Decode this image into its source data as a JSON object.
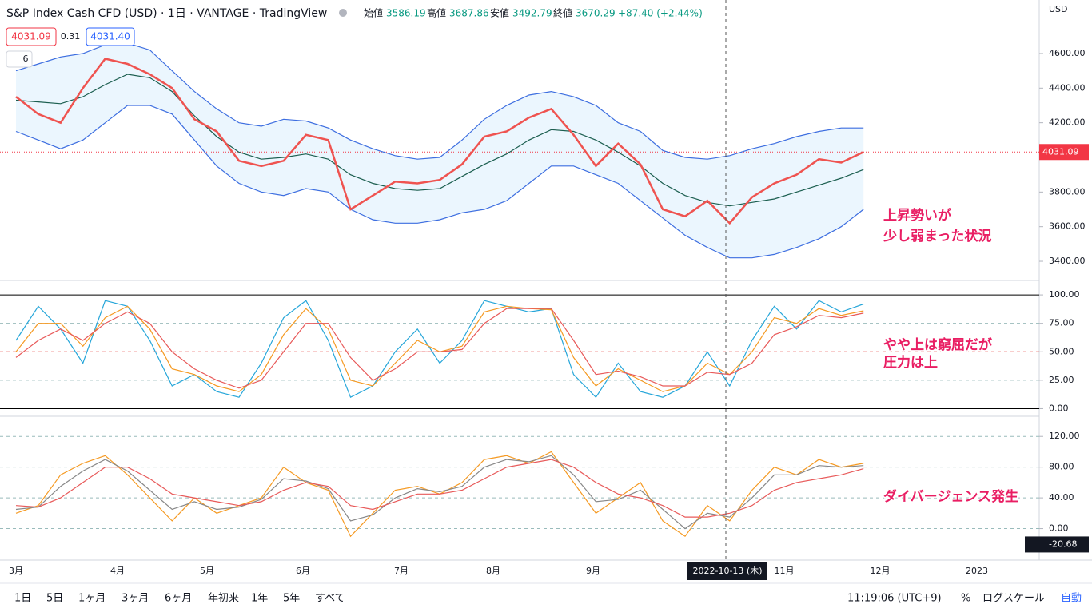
{
  "header": {
    "title": "S&P Index Cash CFD (USD) · 1日 · VANTAGE · TradingView",
    "open_label": "始値",
    "open": 3586.19,
    "high_label": "高値",
    "high": 3687.86,
    "low_label": "安値",
    "low": 3492.79,
    "close_label": "終値",
    "close": 3670.29,
    "change": "+87.40 (+2.44%)",
    "sell": "4031.09",
    "spread": "0.31",
    "buy": "4031.40",
    "indicator_count": "6",
    "currency": "USD"
  },
  "chart_data": [
    {
      "type": "line",
      "ylim": [
        3294,
        4909
      ],
      "yticks": [
        {
          "value": 4600,
          "label": "4600.00"
        },
        {
          "value": 4400,
          "label": "4400.00"
        },
        {
          "value": 4200,
          "label": "4200.00"
        },
        {
          "value": 3800,
          "label": "3800.00"
        },
        {
          "value": 3600,
          "label": "3600.00"
        },
        {
          "value": 3400,
          "label": "3400.00"
        }
      ],
      "last_price": {
        "value": 4031.09,
        "label": "4031.09"
      },
      "series": [
        {
          "name": "Upper",
          "color": "#3d6ee0",
          "values": [
            4500,
            4540,
            4580,
            4600,
            4650,
            4660,
            4620,
            4500,
            4380,
            4280,
            4200,
            4180,
            4220,
            4210,
            4170,
            4100,
            4050,
            4010,
            3990,
            4000,
            4100,
            4220,
            4300,
            4360,
            4380,
            4350,
            4300,
            4200,
            4150,
            4040,
            4000,
            3990,
            4010,
            4050,
            4080,
            4120,
            4150,
            4170,
            4170
          ]
        },
        {
          "name": "Lower",
          "color": "#3d6ee0",
          "values": [
            4150,
            4100,
            4050,
            4100,
            4200,
            4300,
            4300,
            4250,
            4100,
            3950,
            3850,
            3800,
            3780,
            3820,
            3800,
            3700,
            3640,
            3620,
            3620,
            3640,
            3680,
            3700,
            3750,
            3850,
            3950,
            3950,
            3900,
            3850,
            3750,
            3650,
            3550,
            3480,
            3420,
            3420,
            3440,
            3480,
            3530,
            3600,
            3700
          ]
        },
        {
          "name": "Middle",
          "color": "#1b5e4f",
          "values": [
            4330,
            4320,
            4310,
            4350,
            4420,
            4480,
            4460,
            4380,
            4240,
            4120,
            4030,
            3990,
            4000,
            4020,
            3990,
            3900,
            3850,
            3820,
            3810,
            3820,
            3890,
            3960,
            4020,
            4100,
            4160,
            4150,
            4100,
            4030,
            3950,
            3850,
            3780,
            3740,
            3720,
            3740,
            3760,
            3800,
            3840,
            3880,
            3930
          ]
        },
        {
          "name": "Price",
          "color": "#ef5350",
          "values": [
            4350,
            4250,
            4200,
            4400,
            4570,
            4540,
            4480,
            4400,
            4220,
            4150,
            3980,
            3950,
            3980,
            4130,
            4100,
            3700,
            3780,
            3860,
            3850,
            3870,
            3960,
            4120,
            4150,
            4230,
            4280,
            4130,
            3950,
            4080,
            3960,
            3700,
            3660,
            3750,
            3620,
            3770,
            3850,
            3900,
            3990,
            3970,
            4031.09
          ]
        }
      ]
    },
    {
      "type": "line",
      "ylim": [
        -6,
        112
      ],
      "yticks": [
        {
          "value": 100,
          "label": "100.00"
        },
        {
          "value": 75,
          "label": "75.00"
        },
        {
          "value": 50,
          "label": "50.00"
        },
        {
          "value": 25,
          "label": "25.00"
        },
        {
          "value": 0,
          "label": "0.00"
        }
      ],
      "series": [
        {
          "name": "Fast",
          "color": "#26a6d9",
          "values": [
            60,
            90,
            70,
            40,
            95,
            90,
            60,
            20,
            30,
            15,
            10,
            40,
            80,
            95,
            60,
            10,
            20,
            50,
            70,
            40,
            60,
            95,
            90,
            85,
            88,
            30,
            10,
            40,
            15,
            10,
            20,
            50,
            20,
            60,
            90,
            70,
            95,
            85,
            92
          ]
        },
        {
          "name": "Slow",
          "color": "#f59a23",
          "values": [
            50,
            75,
            75,
            55,
            80,
            90,
            70,
            35,
            30,
            20,
            15,
            30,
            65,
            88,
            70,
            25,
            20,
            40,
            60,
            50,
            55,
            85,
            90,
            88,
            87,
            45,
            20,
            35,
            25,
            15,
            20,
            40,
            30,
            50,
            80,
            75,
            88,
            82,
            86
          ]
        },
        {
          "name": "Signal",
          "color": "#e85a5a",
          "values": [
            45,
            60,
            70,
            60,
            75,
            85,
            75,
            50,
            35,
            25,
            18,
            25,
            50,
            75,
            75,
            45,
            25,
            35,
            50,
            50,
            52,
            75,
            88,
            88,
            88,
            60,
            30,
            33,
            28,
            20,
            20,
            32,
            30,
            40,
            65,
            72,
            82,
            80,
            84
          ]
        }
      ]
    },
    {
      "type": "line",
      "ylim": [
        -40,
        140
      ],
      "yticks": [
        {
          "value": 120,
          "label": "120.00"
        },
        {
          "value": 80,
          "label": "80.00"
        },
        {
          "value": 40,
          "label": "40.00"
        },
        {
          "value": 0,
          "label": "0.00"
        }
      ],
      "crosshair_value": -20.68,
      "series": [
        {
          "name": "Fast",
          "color": "#f59a23",
          "values": [
            20,
            30,
            70,
            85,
            95,
            70,
            40,
            10,
            40,
            20,
            30,
            40,
            80,
            60,
            50,
            -10,
            20,
            50,
            55,
            45,
            60,
            90,
            95,
            85,
            100,
            60,
            20,
            40,
            60,
            10,
            -10,
            30,
            10,
            50,
            80,
            70,
            90,
            80,
            85
          ]
        },
        {
          "name": "Mid",
          "color": "#888888",
          "values": [
            25,
            28,
            55,
            75,
            90,
            75,
            50,
            25,
            35,
            25,
            28,
            38,
            65,
            62,
            52,
            10,
            18,
            40,
            52,
            48,
            55,
            80,
            90,
            87,
            95,
            70,
            35,
            38,
            50,
            25,
            0,
            20,
            15,
            40,
            70,
            70,
            82,
            80,
            82
          ]
        },
        {
          "name": "Slow",
          "color": "#e85a5a",
          "values": [
            30,
            28,
            40,
            60,
            80,
            80,
            65,
            45,
            40,
            35,
            30,
            35,
            50,
            60,
            55,
            30,
            25,
            35,
            45,
            45,
            50,
            65,
            80,
            85,
            90,
            80,
            60,
            45,
            40,
            30,
            15,
            15,
            20,
            30,
            50,
            60,
            65,
            70,
            78
          ]
        }
      ]
    }
  ],
  "time_axis": {
    "labels": [
      "3月",
      "4月",
      "5月",
      "6月",
      "7月",
      "8月",
      "9月",
      "11月",
      "12月",
      "2023"
    ],
    "crosshair_date": "2022-10-13 (木)"
  },
  "annotations": [
    [
      "上昇勢いが",
      "少し弱まった状況"
    ],
    [
      "やや上は窮屈だが",
      "圧力は上"
    ],
    [
      "ダイバージェンス発生"
    ]
  ],
  "toolbar": {
    "ranges": [
      "1日",
      "5日",
      "1ヶ月",
      "3ヶ月",
      "6ヶ月",
      "年初来",
      "1年",
      "5年",
      "すべて"
    ],
    "clock": "11:19:06 (UTC+9)",
    "percent": "%",
    "log": "ログスケール",
    "auto": "自動"
  }
}
